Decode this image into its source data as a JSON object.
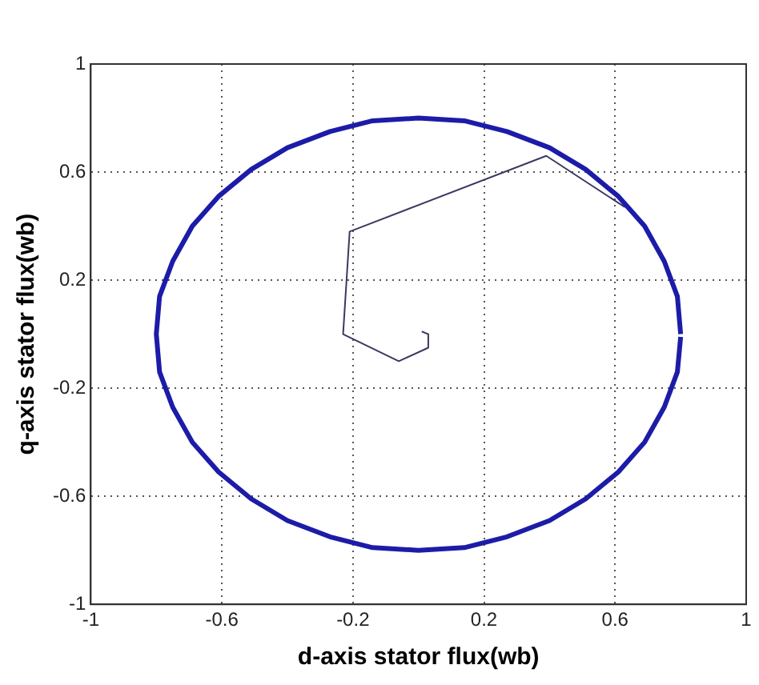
{
  "chart_data": {
    "type": "line",
    "xlabel": "d-axis stator flux(wb)",
    "ylabel": "q-axis stator flux(wb)",
    "xlim": [
      -1,
      1
    ],
    "ylim": [
      -1,
      1
    ],
    "xticks": [
      -1,
      -0.6,
      -0.2,
      0.2,
      0.6,
      1
    ],
    "yticks": [
      -1,
      -0.6,
      -0.2,
      0.2,
      0.6,
      1
    ],
    "grid": true,
    "legend": false,
    "marker": "none",
    "line_style": "solid",
    "series": [
      {
        "type": "line",
        "color": "#1c1ca8",
        "x": [
          0.8,
          0.79,
          0.75,
          0.69,
          0.61,
          0.51,
          0.4,
          0.27,
          0.14,
          0,
          -0.14,
          -0.27,
          -0.4,
          -0.51,
          -0.61,
          -0.69,
          -0.75,
          -0.79,
          -0.8,
          -0.79,
          -0.75,
          -0.69,
          -0.61,
          -0.51,
          -0.4,
          -0.27,
          -0.14,
          0,
          0.14,
          0.27,
          0.4,
          0.51,
          0.61,
          0.69,
          0.75,
          0.79,
          0.8
        ],
        "values": [
          0,
          0.14,
          0.27,
          0.4,
          0.51,
          0.61,
          0.69,
          0.75,
          0.79,
          0.8,
          0.79,
          0.75,
          0.69,
          0.61,
          0.51,
          0.4,
          0.27,
          0.14,
          0,
          -0.14,
          -0.27,
          -0.4,
          -0.51,
          -0.61,
          -0.69,
          -0.75,
          -0.79,
          -0.8,
          -0.79,
          -0.75,
          -0.69,
          -0.61,
          -0.51,
          -0.4,
          -0.27,
          -0.14,
          -0.01
        ]
      },
      {
        "type": "line",
        "color": "#3a3a60",
        "x": [
          0.01,
          0.03,
          0.03,
          -0.06,
          -0.23,
          -0.21,
          0.39,
          0.63
        ],
        "values": [
          0.01,
          0,
          -0.05,
          -0.1,
          0,
          0.38,
          0.66,
          0.47
        ]
      }
    ]
  }
}
